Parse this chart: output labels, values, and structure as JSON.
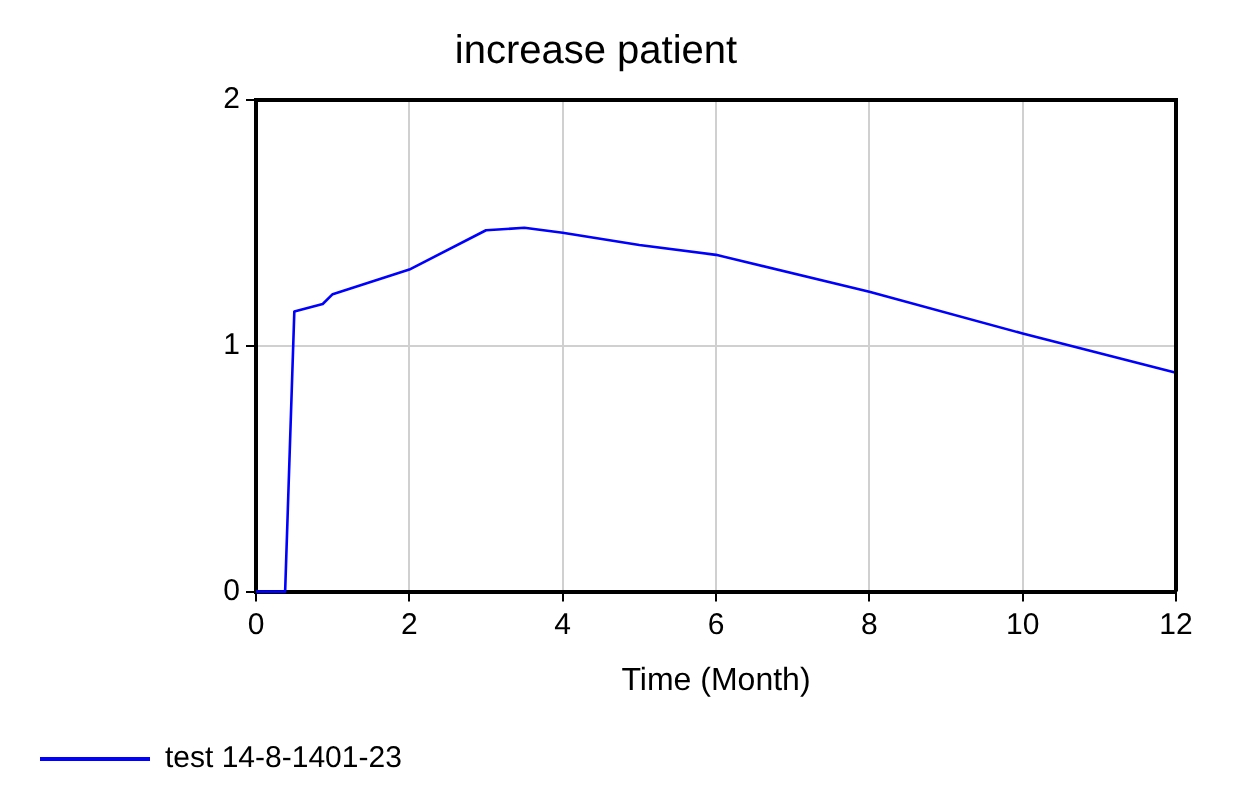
{
  "chart_data": {
    "type": "line",
    "title": "increase patient",
    "xlabel": "Time (Month)",
    "xlim": [
      0,
      12
    ],
    "xticks": [
      0,
      2,
      4,
      6,
      8,
      10,
      12
    ],
    "ylim": [
      0,
      2
    ],
    "yticks": [
      0,
      1,
      2
    ],
    "grid": true,
    "legend": "bottom left",
    "marker": "none",
    "line_style": "solid",
    "series": [
      {
        "name": "test 14-8-1401-23",
        "color": "#0000ff",
        "x": [
          0,
          0.38,
          0.5,
          0.87,
          1,
          2,
          3,
          3.5,
          4,
          5,
          6,
          8,
          10,
          12
        ],
        "values": [
          0,
          0,
          1.14,
          1.17,
          1.21,
          1.31,
          1.47,
          1.48,
          1.46,
          1.41,
          1.37,
          1.22,
          1.05,
          0.89
        ]
      }
    ]
  }
}
